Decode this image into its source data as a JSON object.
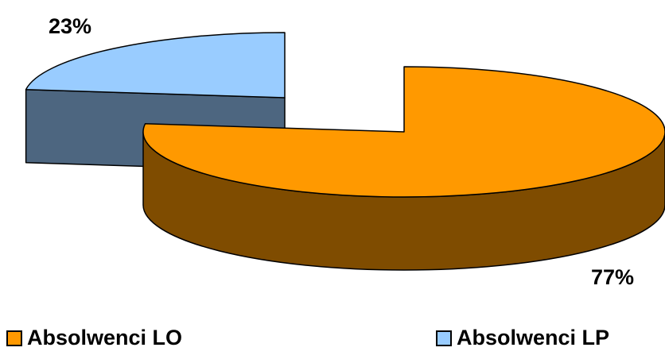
{
  "chart_data": {
    "type": "pie",
    "title": "",
    "labels": [
      "Absolwenci LO",
      "Absolwenci LP"
    ],
    "values": [
      77,
      23
    ],
    "data_labels": [
      "77%",
      "23%"
    ],
    "colors": {
      "Absolwenci LO": {
        "top": "#FF9900",
        "side": "#7F4C00"
      },
      "Absolwenci LP": {
        "top": "#99CCFF",
        "side": "#4D6680"
      }
    },
    "exploded": true,
    "three_d": true,
    "legend_position": "bottom"
  }
}
